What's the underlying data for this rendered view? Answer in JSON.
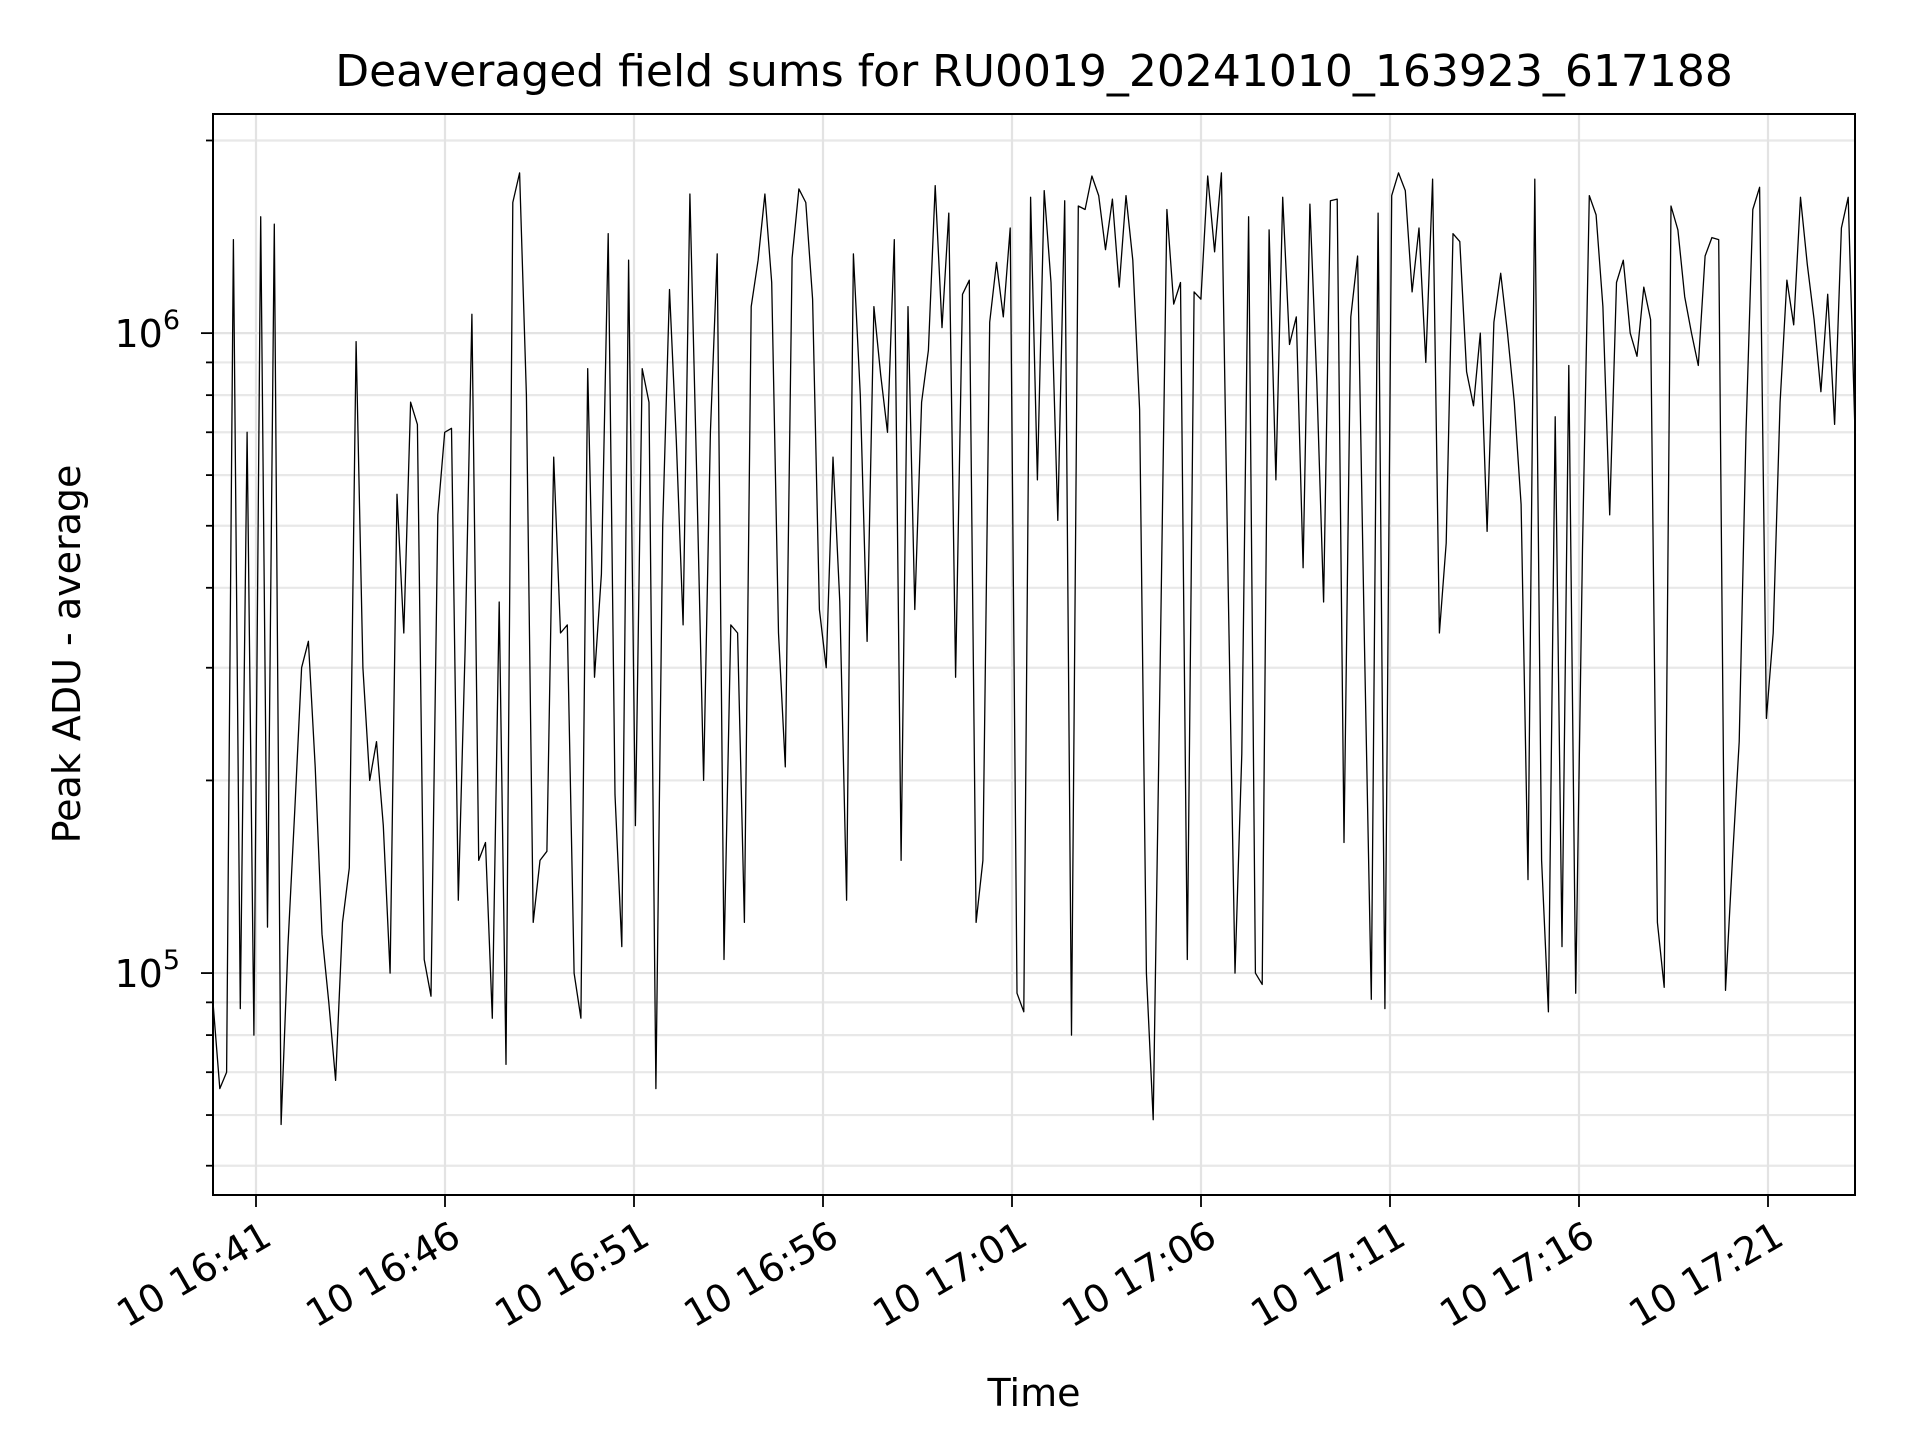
{
  "chart_data": {
    "type": "line",
    "title": "Deaveraged field sums for RU0019_20241010_163923_617188",
    "xlabel": "Time",
    "ylabel": "Peak ADU - average",
    "yscale": "log",
    "ylim": [
      45000,
      2200000
    ],
    "x_tick_labels": [
      "10 16:41",
      "10 16:46",
      "10 16:51",
      "10 16:56",
      "10 17:01",
      "10 17:06",
      "10 17:11",
      "10 17:16",
      "10 17:21"
    ],
    "y_tick_labels": [
      {
        "base": "10",
        "exp": "6",
        "value": 1000000
      },
      {
        "base": "10",
        "exp": "5",
        "value": 100000
      }
    ],
    "grid": true,
    "legend": "none",
    "line_color": "#000000",
    "series": [
      {
        "values": [
          90000,
          66000,
          70000,
          1400000,
          88000,
          700000,
          80000,
          1520000,
          118000,
          1480000,
          58000,
          110000,
          180000,
          300000,
          330000,
          210000,
          115000,
          90000,
          68000,
          120000,
          146000,
          970000,
          300000,
          200000,
          230000,
          170000,
          100000,
          560000,
          340000,
          780000,
          720000,
          105000,
          92000,
          520000,
          700000,
          710000,
          130000,
          320000,
          1070000,
          150000,
          160000,
          85000,
          380000,
          72000,
          1600000,
          1780000,
          800000,
          120000,
          150000,
          155000,
          640000,
          340000,
          350000,
          100000,
          85000,
          880000,
          290000,
          420000,
          1430000,
          190000,
          110000,
          1300000,
          170000,
          880000,
          780000,
          66000,
          500000,
          1170000,
          680000,
          350000,
          1650000,
          600000,
          200000,
          700000,
          1330000,
          105000,
          350000,
          340000,
          120000,
          1100000,
          1300000,
          1650000,
          1200000,
          340000,
          210000,
          1310000,
          1680000,
          1600000,
          1130000,
          370000,
          300000,
          640000,
          380000,
          130000,
          1330000,
          800000,
          330000,
          1100000,
          860000,
          700000,
          1400000,
          150000,
          1100000,
          370000,
          780000,
          940000,
          1700000,
          1020000,
          1540000,
          290000,
          1150000,
          1210000,
          120000,
          150000,
          1040000,
          1290000,
          1060000,
          1460000,
          93000,
          87000,
          1630000,
          590000,
          1670000,
          1200000,
          510000,
          1610000,
          80000,
          1580000,
          1560000,
          1760000,
          1640000,
          1350000,
          1620000,
          1180000,
          1640000,
          1300000,
          760000,
          100000,
          59000,
          290000,
          1560000,
          1110000,
          1200000,
          105000,
          1160000,
          1130000,
          1760000,
          1340000,
          1780000,
          400000,
          100000,
          220000,
          1520000,
          100000,
          96000,
          1450000,
          590000,
          1630000,
          960000,
          1060000,
          430000,
          1590000,
          840000,
          380000,
          1610000,
          1620000,
          160000,
          1060000,
          1320000,
          330000,
          91000,
          1540000,
          88000,
          1640000,
          1780000,
          1670000,
          1160000,
          1460000,
          900000,
          1740000,
          340000,
          470000,
          1430000,
          1390000,
          870000,
          770000,
          1000000,
          490000,
          1040000,
          1240000,
          1000000,
          780000,
          540000,
          140000,
          1740000,
          150000,
          87000,
          740000,
          110000,
          890000,
          93000,
          460000,
          1640000,
          1530000,
          1100000,
          520000,
          1200000,
          1300000,
          1000000,
          920000,
          1180000,
          1050000,
          120000,
          95000,
          1580000,
          1450000,
          1140000,
          1000000,
          890000,
          1320000,
          1410000,
          1400000,
          94000,
          150000,
          230000,
          700000,
          1560000,
          1690000,
          250000,
          340000,
          780000,
          1210000,
          1030000,
          1630000,
          1280000,
          1050000,
          810000,
          1150000,
          720000,
          1460000,
          1630000,
          700000
        ]
      }
    ]
  }
}
